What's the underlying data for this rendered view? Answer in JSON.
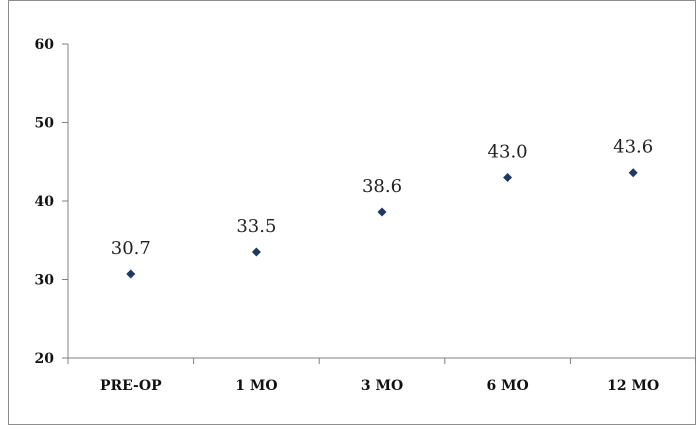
{
  "chart_data": {
    "type": "scatter",
    "categories": [
      "PRE-OP",
      "1 MO",
      "3 MO",
      "6 MO",
      "12 MO"
    ],
    "values": [
      30.7,
      33.5,
      38.6,
      43.0,
      43.6
    ],
    "data_labels": [
      "30.7",
      "33.5",
      "38.6",
      "43.0",
      "43.6"
    ],
    "y_ticks": [
      "20",
      "30",
      "40",
      "50",
      "60"
    ],
    "ylim": [
      20,
      60
    ],
    "grid": false,
    "legend": "none",
    "title": "",
    "xlabel": "",
    "ylabel": "",
    "marker": "diamond",
    "colors": {
      "marker": "#1f3864",
      "axis": "#808080",
      "text": "#111111"
    }
  }
}
